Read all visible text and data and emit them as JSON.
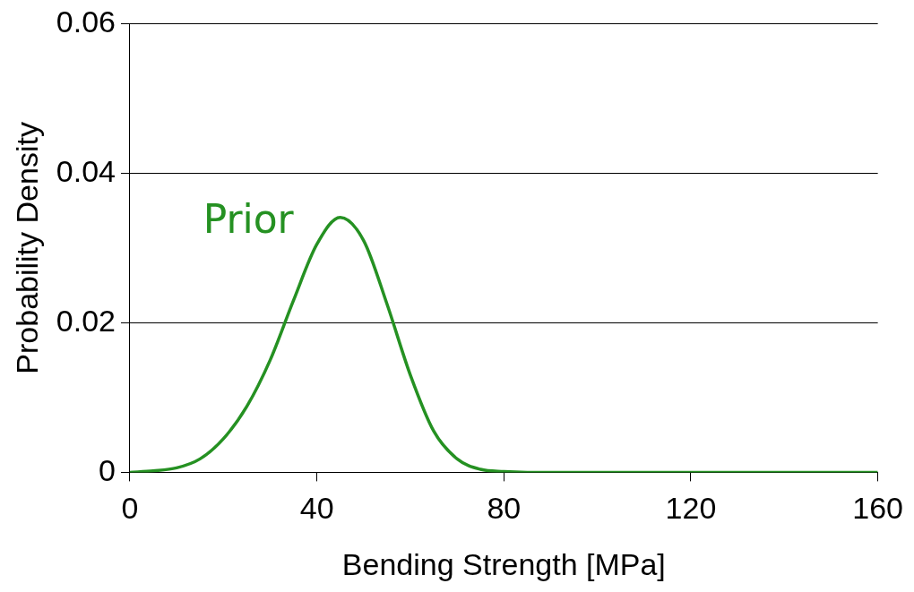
{
  "chart_data": {
    "type": "line",
    "xlabel": "Bending Strength [MPa]",
    "ylabel": "Probability Density",
    "xlim": [
      0,
      160
    ],
    "xticks": [
      0,
      40,
      80,
      120,
      160
    ],
    "ylim": [
      0,
      0.06
    ],
    "yticks": [
      0,
      0.02,
      0.04,
      0.06
    ],
    "grid": "y",
    "legend": false,
    "marker": "none",
    "line_style": "solid",
    "series": [
      {
        "name": "Prior",
        "color": "#259122",
        "x": [
          0,
          5,
          10,
          15,
          20,
          25,
          30,
          35,
          40,
          45,
          50,
          55,
          60,
          65,
          70,
          75,
          80,
          85,
          100,
          120,
          140,
          160
        ],
        "values": [
          0,
          0.0002,
          0.0006,
          0.0018,
          0.0045,
          0.0088,
          0.015,
          0.023,
          0.0305,
          0.0341,
          0.031,
          0.0225,
          0.013,
          0.0055,
          0.0018,
          0.0004,
          0.0001,
          0,
          0,
          0,
          0,
          0
        ]
      }
    ]
  }
}
